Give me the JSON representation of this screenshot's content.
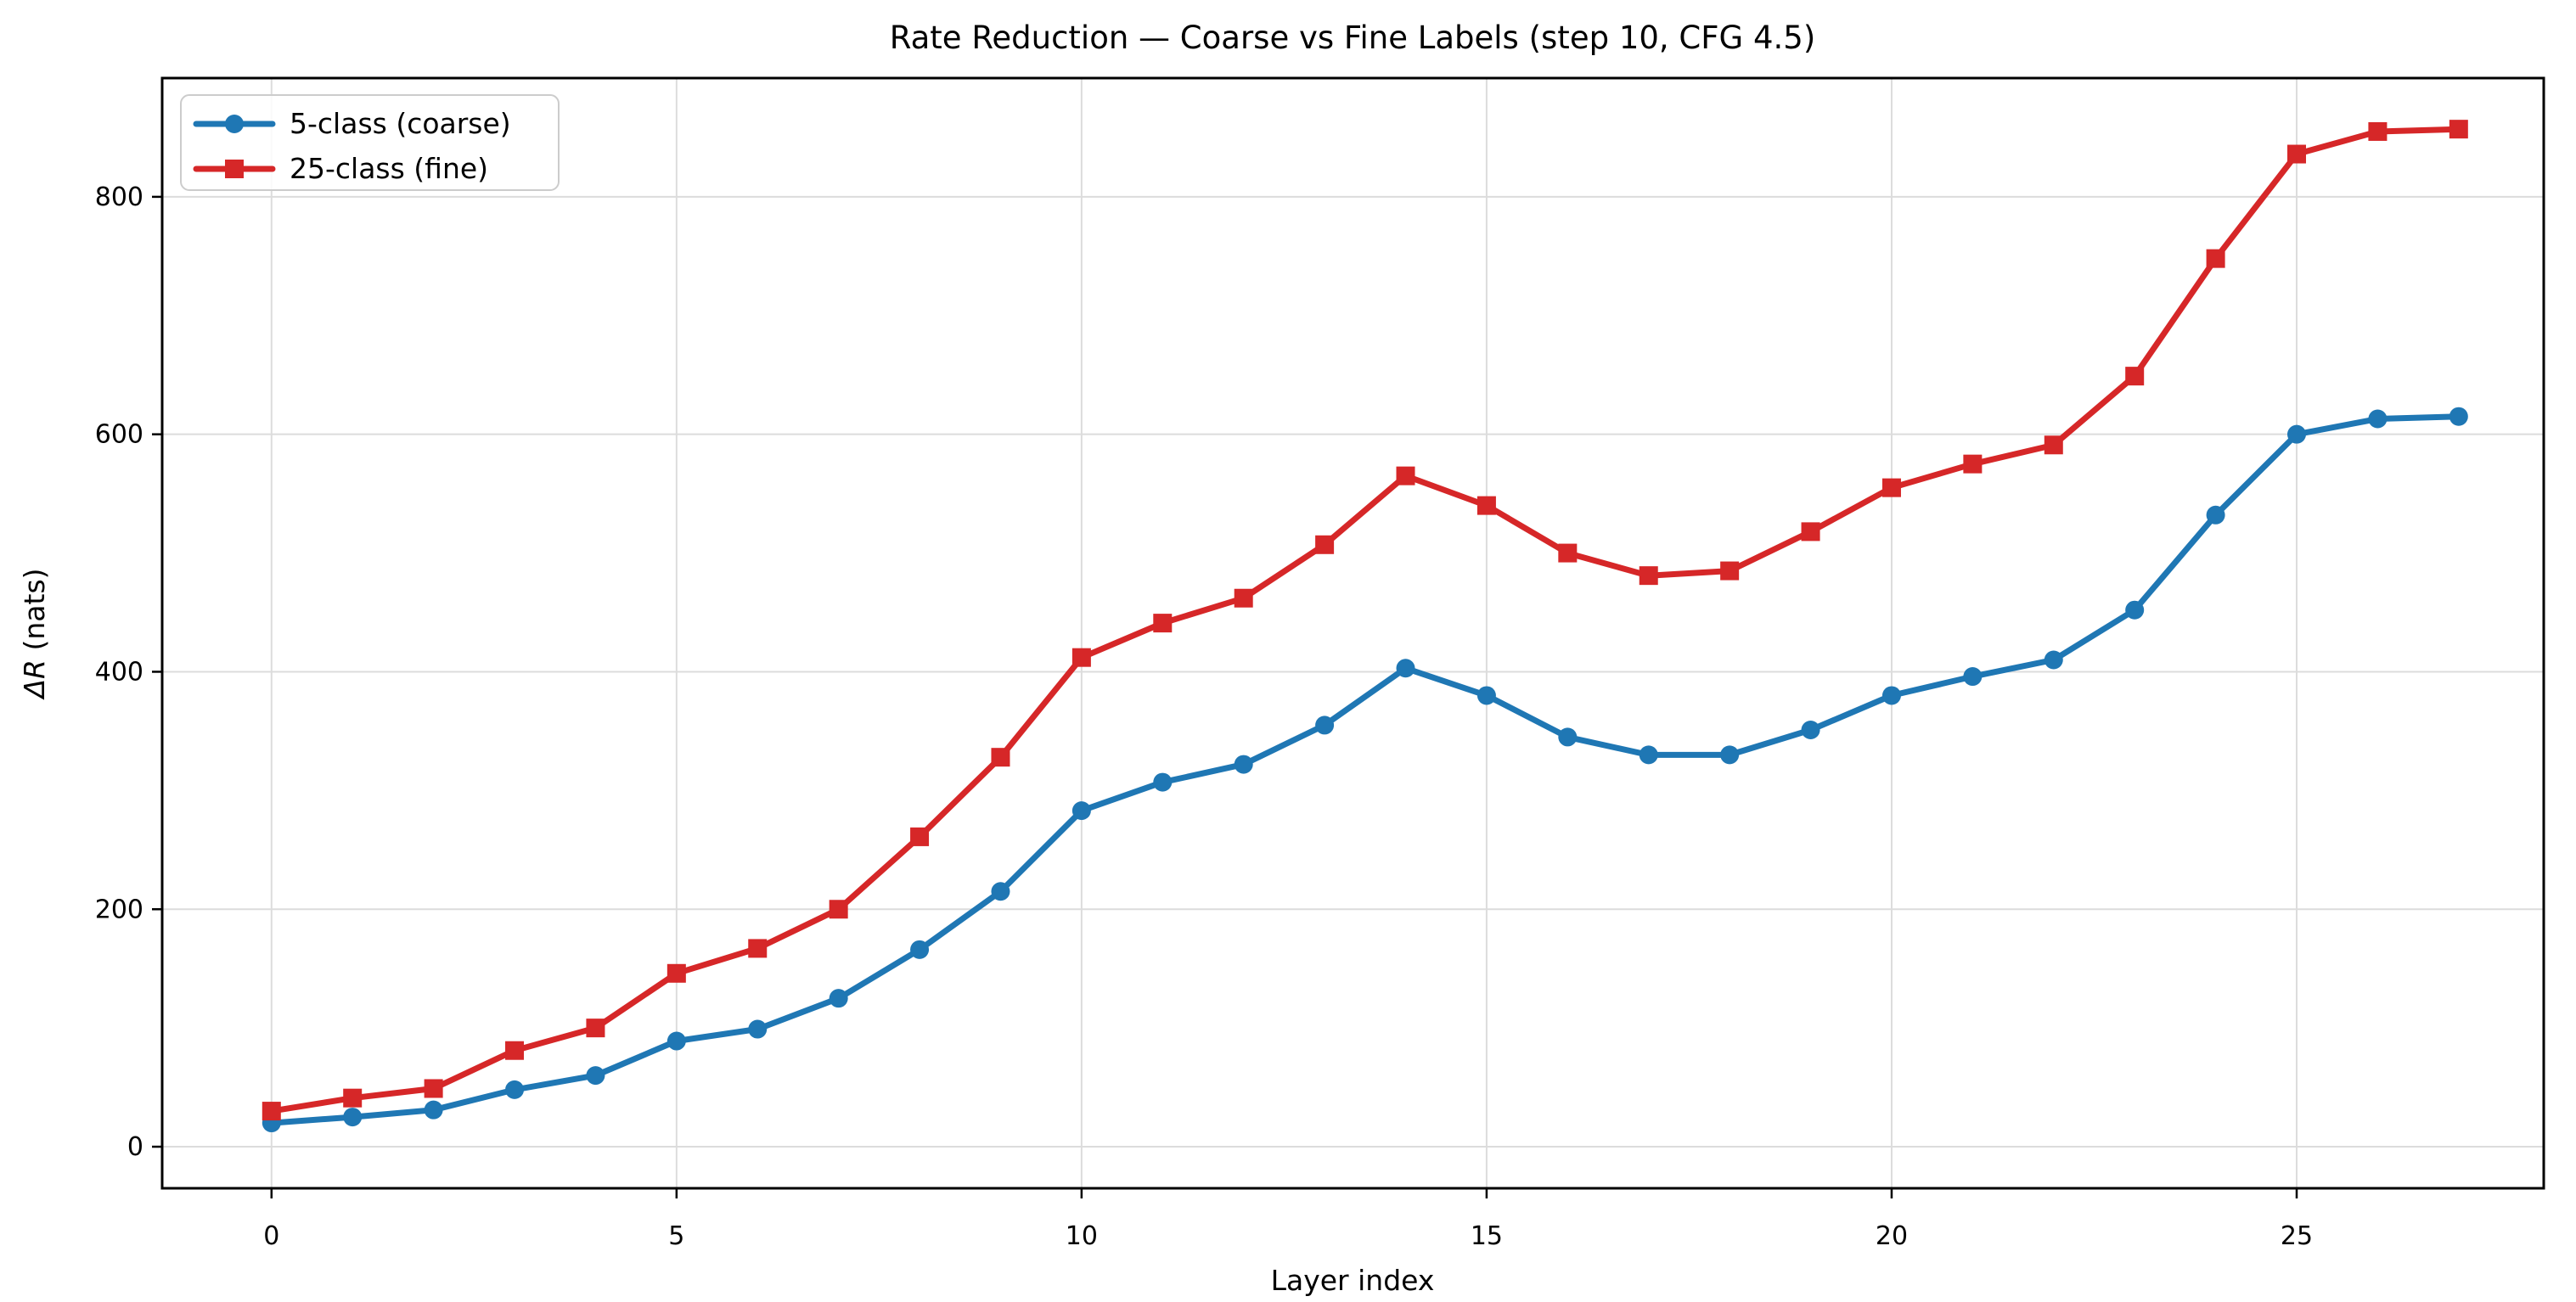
{
  "figure": {
    "background": "#ffffff"
  },
  "chart_data": {
    "type": "line",
    "title": "Rate Reduction — Coarse vs Fine Labels (step 10, CFG 4.5)",
    "xlabel": "Layer index",
    "ylabel": "ΔR (nats)",
    "ylabel_parts": {
      "italic": "ΔR",
      "regular": " (nats)"
    },
    "x": [
      0,
      1,
      2,
      3,
      4,
      5,
      6,
      7,
      8,
      9,
      10,
      11,
      12,
      13,
      14,
      15,
      16,
      17,
      18,
      19,
      20,
      21,
      22,
      23,
      24,
      25,
      26,
      27
    ],
    "series": [
      {
        "name": "5-class (coarse)",
        "color": "#1f77b4",
        "marker": "circle",
        "values": [
          20,
          25,
          31,
          48,
          60,
          89,
          99,
          125,
          166,
          215,
          283,
          307,
          322,
          355,
          403,
          380,
          345,
          330,
          330,
          351,
          380,
          396,
          410,
          452,
          532,
          600,
          613,
          615
        ]
      },
      {
        "name": "25-class (fine)",
        "color": "#d62728",
        "marker": "square",
        "values": [
          30,
          41,
          49,
          81,
          100,
          146,
          167,
          200,
          261,
          328,
          412,
          441,
          462,
          507,
          565,
          540,
          500,
          481,
          485,
          518,
          555,
          575,
          591,
          649,
          748,
          836,
          855,
          857
        ]
      }
    ],
    "xlim": [
      -1.35,
      28.05
    ],
    "ylim": [
      -35,
      900
    ],
    "xticks": [
      0,
      5,
      10,
      15,
      20,
      25
    ],
    "yticks": [
      0,
      200,
      400,
      600,
      800
    ],
    "grid": true,
    "grid_color": "#dcdcdc",
    "spine_color": "#000000",
    "tick_color": "#000000",
    "legend": {
      "position": "upper left",
      "labels": [
        "5-class (coarse)",
        "25-class (fine)"
      ],
      "border_color": "#cccccc",
      "background": "#ffffff"
    }
  }
}
